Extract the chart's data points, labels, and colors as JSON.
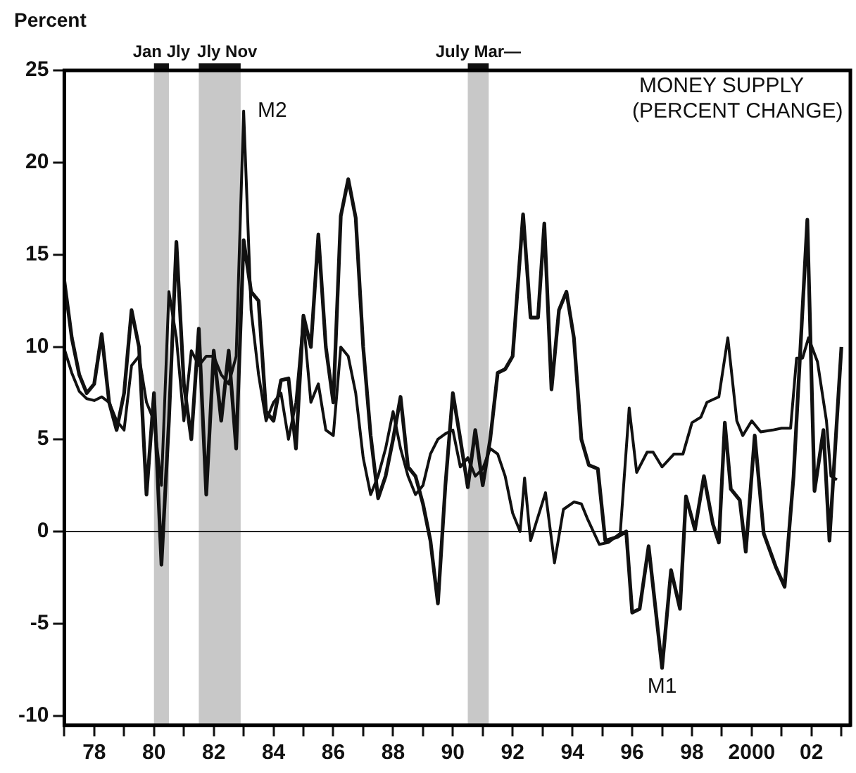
{
  "chart_data": {
    "type": "line",
    "title": "MONEY SUPPLY",
    "subtitle": "(PERCENT CHANGE)",
    "ylabel": "Percent",
    "xlim": [
      1977.0,
      2003.3
    ],
    "ylim": [
      -10.5,
      25
    ],
    "yticks": [
      -10,
      -5,
      0,
      5,
      10,
      15,
      20,
      25
    ],
    "xticks": [
      {
        "value": 1977,
        "label": null
      },
      {
        "value": 1978,
        "label": "78"
      },
      {
        "value": 1979,
        "label": null
      },
      {
        "value": 1980,
        "label": "80"
      },
      {
        "value": 1981,
        "label": null
      },
      {
        "value": 1982,
        "label": "82"
      },
      {
        "value": 1983,
        "label": null
      },
      {
        "value": 1984,
        "label": "84"
      },
      {
        "value": 1985,
        "label": null
      },
      {
        "value": 1986,
        "label": "86"
      },
      {
        "value": 1987,
        "label": null
      },
      {
        "value": 1988,
        "label": "88"
      },
      {
        "value": 1989,
        "label": null
      },
      {
        "value": 1990,
        "label": "90"
      },
      {
        "value": 1991,
        "label": null
      },
      {
        "value": 1992,
        "label": "92"
      },
      {
        "value": 1993,
        "label": null
      },
      {
        "value": 1994,
        "label": "94"
      },
      {
        "value": 1995,
        "label": null
      },
      {
        "value": 1996,
        "label": "96"
      },
      {
        "value": 1997,
        "label": null
      },
      {
        "value": 1998,
        "label": "98"
      },
      {
        "value": 1999,
        "label": null
      },
      {
        "value": 2000,
        "label": "2000"
      },
      {
        "value": 2001,
        "label": null
      },
      {
        "value": 2002,
        "label": "02"
      },
      {
        "value": 2003,
        "label": null
      }
    ],
    "grid": false,
    "legend": false,
    "marker": "none",
    "line_style": "solid",
    "ref_lines": [
      {
        "axis": "y",
        "value": 0,
        "color": "#222222"
      }
    ],
    "bands": [
      {
        "axis": "x",
        "from": 1980.0,
        "to": 1980.5,
        "label": "Jan Jly",
        "color": "#c8c8c8"
      },
      {
        "axis": "x",
        "from": 1981.5,
        "to": 1982.9,
        "label": "Jly Nov",
        "color": "#c8c8c8"
      },
      {
        "axis": "x",
        "from": 1990.5,
        "to": 1991.2,
        "label": "July Mar—",
        "color": "#c8c8c8"
      }
    ],
    "series": [
      {
        "name": "M1",
        "color": "#111111",
        "x": [
          1977.0,
          1977.25,
          1977.5,
          1977.75,
          1978.0,
          1978.25,
          1978.5,
          1978.75,
          1979.0,
          1979.25,
          1979.5,
          1979.75,
          1980.0,
          1980.25,
          1980.5,
          1980.75,
          1981.0,
          1981.25,
          1981.5,
          1981.75,
          1982.0,
          1982.25,
          1982.5,
          1982.75,
          1983.0,
          1983.25,
          1983.5,
          1983.75,
          1984.0,
          1984.25,
          1984.5,
          1984.75,
          1985.0,
          1985.25,
          1985.5,
          1985.75,
          1986.0,
          1986.25,
          1986.5,
          1986.75,
          1987.0,
          1987.25,
          1987.5,
          1987.75,
          1988.0,
          1988.25,
          1988.5,
          1988.75,
          1989.0,
          1989.25,
          1989.5,
          1989.75,
          1990.0,
          1990.25,
          1990.5,
          1990.75,
          1991.0,
          1991.25,
          1991.5,
          1991.75,
          1992.0,
          1992.35,
          1992.6,
          1992.85,
          1993.06,
          1993.3,
          1993.55,
          1993.8,
          1994.05,
          1994.3,
          1994.55,
          1994.85,
          1995.1,
          1995.5,
          1995.8,
          1996.0,
          1996.25,
          1996.55,
          1997.0,
          1997.3,
          1997.6,
          1997.8,
          1998.1,
          1998.4,
          1998.7,
          1998.9,
          1999.1,
          1999.3,
          1999.6,
          1999.8,
          2000.1,
          2000.4,
          2000.8,
          2001.1,
          2001.4,
          2001.86,
          2002.1,
          2002.4,
          2002.6,
          2003.0
        ],
        "values": [
          13.6,
          10.5,
          8.5,
          7.5,
          8.0,
          10.7,
          7.0,
          5.5,
          7.5,
          12.0,
          10.0,
          2.0,
          7.5,
          -1.8,
          6.0,
          15.7,
          8.0,
          5.0,
          11.0,
          2.0,
          9.8,
          6.0,
          9.8,
          4.5,
          15.8,
          13.0,
          12.5,
          6.5,
          6.0,
          8.2,
          8.3,
          4.5,
          11.7,
          10.0,
          16.1,
          10.0,
          7.0,
          17.1,
          19.1,
          17.0,
          10.0,
          5.2,
          1.8,
          3.0,
          5.0,
          7.3,
          3.5,
          3.0,
          1.5,
          -0.5,
          -3.9,
          2.5,
          7.5,
          5.0,
          2.4,
          5.5,
          2.5,
          5.0,
          8.6,
          8.8,
          9.5,
          17.2,
          11.6,
          11.6,
          16.7,
          7.7,
          12.0,
          13.0,
          10.5,
          5.0,
          3.6,
          3.4,
          -0.5,
          -0.3,
          0,
          -4.4,
          -4.2,
          -0.8,
          -7.4,
          -2.1,
          -4.2,
          1.9,
          0.1,
          3.0,
          0.4,
          -0.6,
          5.9,
          2.3,
          1.7,
          -1.1,
          5.2,
          -0.1,
          -1.9,
          -3.0,
          3.0,
          16.9,
          2.2,
          5.5,
          -0.5,
          10.0
        ]
      },
      {
        "name": "M2",
        "color": "#111111",
        "x": [
          1977.0,
          1977.25,
          1977.5,
          1977.75,
          1978.0,
          1978.25,
          1978.5,
          1978.75,
          1979.0,
          1979.25,
          1979.5,
          1979.75,
          1980.0,
          1980.25,
          1980.5,
          1980.75,
          1981.0,
          1981.25,
          1981.5,
          1981.75,
          1982.0,
          1982.25,
          1982.5,
          1982.75,
          1983.0,
          1983.25,
          1983.5,
          1983.75,
          1984.0,
          1984.25,
          1984.5,
          1984.75,
          1985.0,
          1985.25,
          1985.5,
          1985.75,
          1986.0,
          1986.25,
          1986.5,
          1986.75,
          1987.0,
          1987.25,
          1987.5,
          1987.75,
          1988.0,
          1988.25,
          1988.5,
          1988.75,
          1989.0,
          1989.25,
          1989.5,
          1989.75,
          1990.0,
          1990.25,
          1990.5,
          1990.75,
          1991.0,
          1991.25,
          1991.5,
          1991.75,
          1992.0,
          1992.25,
          1992.4,
          1992.6,
          1993.1,
          1993.4,
          1993.7,
          1994.05,
          1994.3,
          1994.5,
          1994.9,
          1995.2,
          1995.6,
          1995.9,
          1996.15,
          1996.5,
          1996.7,
          1997.0,
          1997.4,
          1997.7,
          1998.0,
          1998.3,
          1998.5,
          1998.9,
          1999.2,
          1999.5,
          1999.7,
          2000.0,
          2000.3,
          2000.7,
          2001.0,
          2001.3,
          2001.5,
          2001.7,
          2001.9,
          2002.2,
          2002.5,
          2002.65,
          2002.85
        ],
        "values": [
          9.9,
          8.6,
          7.6,
          7.2,
          7.1,
          7.3,
          7.0,
          6.0,
          5.5,
          9.0,
          9.5,
          7.0,
          6.0,
          2.5,
          13.0,
          10.5,
          6.0,
          9.8,
          9.0,
          9.5,
          9.5,
          8.5,
          8.0,
          9.5,
          22.8,
          12.0,
          8.5,
          6.0,
          7.0,
          7.5,
          5.0,
          7.0,
          11.5,
          7.0,
          8.0,
          5.5,
          5.2,
          10.0,
          9.5,
          7.5,
          4.0,
          2.0,
          3.0,
          4.5,
          6.5,
          4.5,
          3.0,
          2.0,
          2.5,
          4.2,
          5.0,
          5.3,
          5.5,
          3.5,
          4.0,
          3.0,
          3.4,
          4.5,
          4.2,
          3.0,
          1.0,
          0,
          2.9,
          -0.5,
          2.1,
          -1.7,
          1.2,
          1.6,
          1.5,
          0.7,
          -0.7,
          -0.6,
          -0.1,
          6.7,
          3.2,
          4.3,
          4.3,
          3.5,
          4.2,
          4.2,
          5.9,
          6.2,
          7.0,
          7.3,
          10.5,
          6.0,
          5.2,
          6.0,
          5.4,
          5.5,
          5.6,
          5.6,
          9.4,
          9.4,
          10.5,
          9.2,
          6.0,
          3.0,
          2.8
        ]
      }
    ]
  }
}
